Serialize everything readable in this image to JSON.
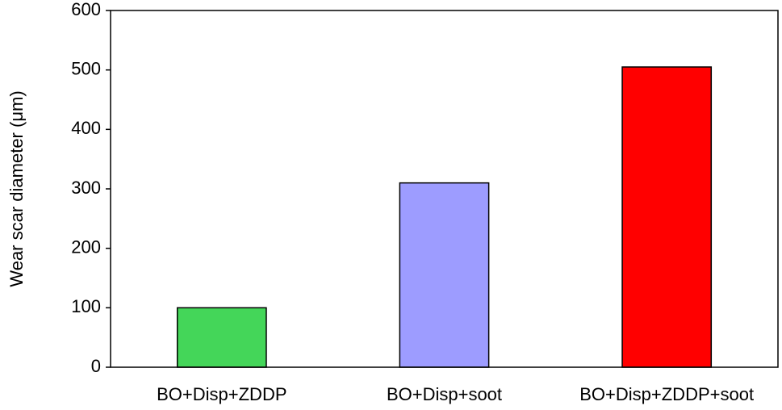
{
  "chart_data": {
    "type": "bar",
    "y_label": "Wear scar diameter (μm)",
    "categories": [
      "BO+Disp+ZDDP",
      "BO+Disp+soot",
      "BO+Disp+ZDDP+soot"
    ],
    "values": [
      100,
      310,
      505
    ],
    "colors": [
      "#44d659",
      "#9d9cff",
      "#ff0000"
    ],
    "ylim": [
      0,
      600
    ],
    "yticks": [
      0,
      100,
      200,
      300,
      400,
      500,
      600
    ],
    "grid": false
  }
}
